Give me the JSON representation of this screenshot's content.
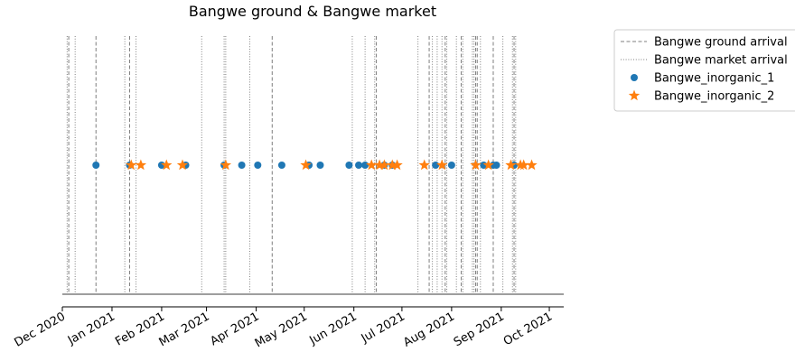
{
  "chart_data": {
    "type": "scatter",
    "title": "Bangwe ground & Bangwe market",
    "xlabel": "",
    "ylabel": "",
    "x_axis": "date",
    "xlim": [
      "2020-12-01",
      "2021-10-10"
    ],
    "x_ticks": [
      "2020-12-01",
      "2021-01-01",
      "2021-02-01",
      "2021-03-01",
      "2021-04-01",
      "2021-05-01",
      "2021-06-01",
      "2021-07-01",
      "2021-08-01",
      "2021-09-01",
      "2021-10-01"
    ],
    "x_tick_labels": [
      "Dec 2020",
      "Jan 2021",
      "Feb 2021",
      "Mar 2021",
      "Apr 2021",
      "May 2021",
      "Jun 2021",
      "Jul 2021",
      "Aug 2021",
      "Sep 2021",
      "Oct 2021"
    ],
    "legend_position": "outside-top-right",
    "grid": false,
    "vertical_lines": [
      {
        "name": "Bangwe ground arrival",
        "style": "dashed",
        "color": "#7f7f7f",
        "dates": [
          "2020-12-05",
          "2020-12-22",
          "2021-01-12",
          "2021-04-11",
          "2021-06-15",
          "2021-07-18",
          "2021-07-28",
          "2021-08-07",
          "2021-08-16",
          "2021-08-17",
          "2021-08-27",
          "2021-09-09"
        ]
      },
      {
        "name": "Bangwe market arrival",
        "style": "dotted",
        "color": "#7f7f7f",
        "dates": [
          "2020-12-04",
          "2020-12-09",
          "2021-01-09",
          "2021-01-16",
          "2021-02-26",
          "2021-03-12",
          "2021-03-13",
          "2021-03-28",
          "2021-05-31",
          "2021-06-08",
          "2021-06-14",
          "2021-07-11",
          "2021-07-20",
          "2021-07-23",
          "2021-07-26",
          "2021-07-29",
          "2021-08-04",
          "2021-08-08",
          "2021-08-14",
          "2021-08-15",
          "2021-08-19",
          "2021-09-02",
          "2021-09-08",
          "2021-09-10"
        ]
      }
    ],
    "series": [
      {
        "name": "Bangwe_inorganic_1",
        "marker": "circle",
        "color": "#1f77b4",
        "x": [
          "2020-12-22",
          "2021-01-12",
          "2021-02-01",
          "2021-02-16",
          "2021-03-12",
          "2021-03-23",
          "2021-04-02",
          "2021-04-17",
          "2021-05-04",
          "2021-05-11",
          "2021-05-29",
          "2021-06-04",
          "2021-06-08",
          "2021-06-20",
          "2021-06-25",
          "2021-07-22",
          "2021-08-01",
          "2021-08-21",
          "2021-08-27",
          "2021-08-29",
          "2021-09-09"
        ],
        "y": [
          1,
          1,
          1,
          1,
          1,
          1,
          1,
          1,
          1,
          1,
          1,
          1,
          1,
          1,
          1,
          1,
          1,
          1,
          1,
          1,
          1
        ]
      },
      {
        "name": "Bangwe_inorganic_2",
        "marker": "star",
        "color": "#ff7f0e",
        "x": [
          "2021-01-13",
          "2021-01-19",
          "2021-02-04",
          "2021-02-14",
          "2021-03-13",
          "2021-05-02",
          "2021-06-12",
          "2021-06-17",
          "2021-06-20",
          "2021-06-25",
          "2021-06-28",
          "2021-07-15",
          "2021-07-26",
          "2021-08-16",
          "2021-08-24",
          "2021-09-07",
          "2021-09-13",
          "2021-09-15",
          "2021-09-20"
        ],
        "y": [
          1,
          1,
          1,
          1,
          1,
          1,
          1,
          1,
          1,
          1,
          1,
          1,
          1,
          1,
          1,
          1,
          1,
          1,
          1
        ]
      }
    ]
  }
}
